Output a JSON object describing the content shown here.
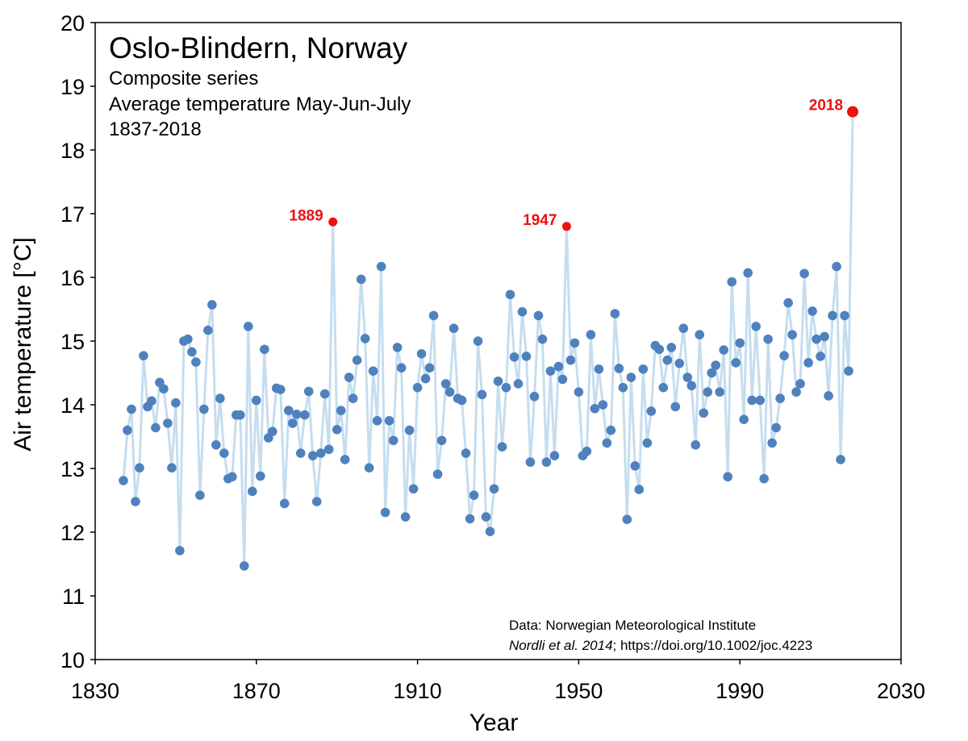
{
  "chart_data": {
    "type": "line",
    "title": "Oslo-Blindern, Norway",
    "subtitle_lines": [
      "Composite series",
      "Average temperature May-Jun-July",
      "1837-2018"
    ],
    "xlabel": "Year",
    "ylabel": "Air temperature [°C]",
    "xlim": [
      1830,
      2030
    ],
    "ylim": [
      10,
      20
    ],
    "xticks": [
      1830,
      1870,
      1910,
      1950,
      1990,
      2030
    ],
    "yticks": [
      10,
      11,
      12,
      13,
      14,
      15,
      16,
      17,
      18,
      19,
      20
    ],
    "grid": false,
    "series": [
      {
        "name": "Average temperature May-Jun-July",
        "x_start": 1837,
        "values": [
          12.81,
          13.6,
          13.93,
          12.48,
          13.01,
          14.77,
          13.97,
          14.06,
          13.64,
          14.35,
          14.25,
          13.71,
          13.01,
          14.03,
          11.71,
          15.0,
          15.03,
          14.83,
          14.67,
          12.58,
          13.93,
          15.17,
          15.57,
          13.37,
          14.1,
          13.24,
          12.84,
          12.87,
          13.84,
          13.84,
          11.47,
          15.23,
          12.64,
          14.07,
          12.88,
          14.87,
          13.48,
          13.58,
          14.26,
          14.24,
          12.45,
          13.91,
          13.71,
          13.85,
          13.24,
          13.84,
          14.21,
          13.2,
          12.48,
          13.24,
          14.17,
          13.3,
          16.87,
          13.61,
          13.91,
          13.14,
          14.43,
          14.1,
          14.7,
          15.97,
          15.04,
          13.01,
          14.53,
          13.75,
          16.17,
          12.31,
          13.75,
          13.44,
          14.9,
          14.58,
          12.24,
          13.6,
          12.68,
          14.27,
          14.8,
          14.41,
          14.58,
          15.4,
          12.91,
          13.44,
          14.33,
          14.2,
          15.2,
          14.1,
          14.07,
          13.24,
          12.21,
          12.58,
          15.0,
          14.16,
          12.24,
          12.01,
          12.68,
          14.37,
          13.34,
          14.27,
          15.73,
          14.75,
          14.33,
          15.46,
          14.76,
          13.1,
          14.13,
          15.4,
          15.03,
          13.1,
          14.53,
          13.2,
          14.6,
          14.4,
          16.8,
          14.7,
          14.97,
          14.2,
          13.2,
          13.27,
          15.1,
          13.94,
          14.56,
          14.0,
          13.4,
          13.6,
          15.43,
          14.57,
          14.27,
          12.2,
          14.43,
          13.04,
          12.67,
          14.56,
          13.4,
          13.9,
          14.93,
          14.87,
          14.27,
          14.7,
          14.9,
          13.97,
          14.65,
          15.2,
          14.43,
          14.3,
          13.37,
          15.1,
          13.87,
          14.2,
          14.5,
          14.62,
          14.2,
          14.86,
          12.87,
          15.93,
          14.66,
          14.97,
          13.77,
          16.07,
          14.07,
          15.23,
          14.07,
          12.84,
          15.03,
          13.4,
          13.64,
          14.1,
          14.77,
          15.6,
          15.1,
          14.2,
          14.33,
          16.06,
          14.66,
          15.47,
          15.03,
          14.76,
          15.07,
          14.14,
          15.4,
          16.17,
          13.14,
          15.4,
          14.53,
          18.6
        ]
      }
    ],
    "highlights": [
      {
        "year": 1889,
        "value": 16.87,
        "label": "1889"
      },
      {
        "year": 1947,
        "value": 16.8,
        "label": "1947"
      },
      {
        "year": 2018,
        "value": 18.6,
        "label": "2018"
      }
    ],
    "source": {
      "line1": "Data: Norwegian Meteorological Institute",
      "citation_italic": "Nordli et al. 2014",
      "citation_rest": "; https://doi.org/10.1002/joc.4223"
    },
    "colors": {
      "line": "#c5ddef",
      "marker": "#4f81bd",
      "highlight": "#ee1111",
      "axis": "#000000"
    }
  }
}
